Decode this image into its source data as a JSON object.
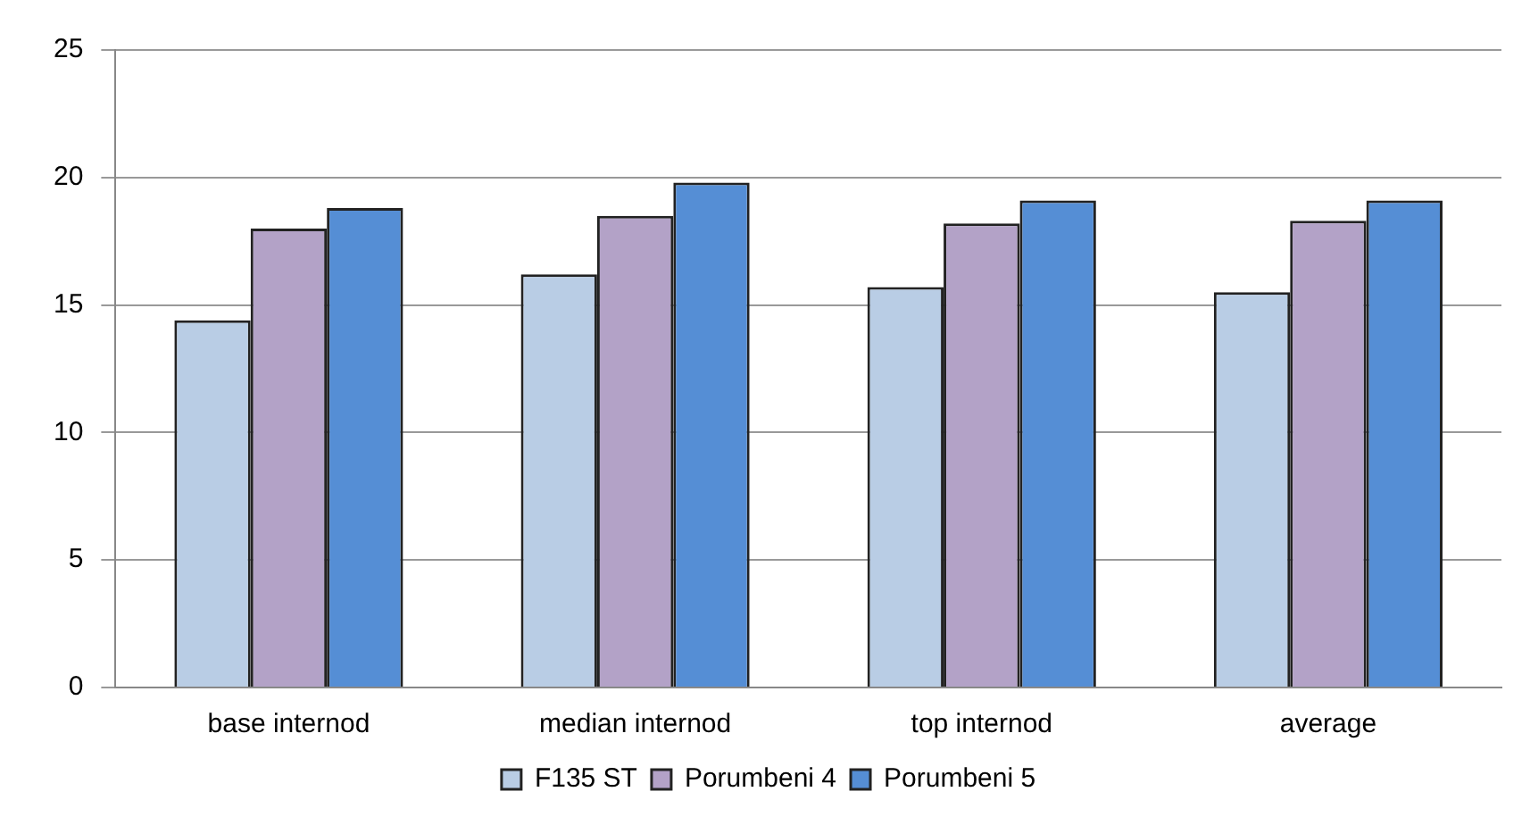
{
  "chart_data": {
    "type": "bar",
    "categories": [
      "base internod",
      "median internod",
      "top internod",
      "average"
    ],
    "series": [
      {
        "name": "F135 ST",
        "color": "#b9cde5",
        "values": [
          14.4,
          16.2,
          15.7,
          15.5
        ]
      },
      {
        "name": "Porumbeni 4",
        "color": "#b3a2c7",
        "values": [
          18.0,
          18.5,
          18.2,
          18.3
        ]
      },
      {
        "name": "Porumbeni 5",
        "color": "#558ed5",
        "values": [
          18.8,
          19.8,
          19.1,
          19.1
        ]
      }
    ],
    "ylim": [
      0,
      25
    ],
    "yticks": [
      0,
      5,
      10,
      15,
      20,
      25
    ],
    "grid": "y",
    "legend": "bottom"
  }
}
